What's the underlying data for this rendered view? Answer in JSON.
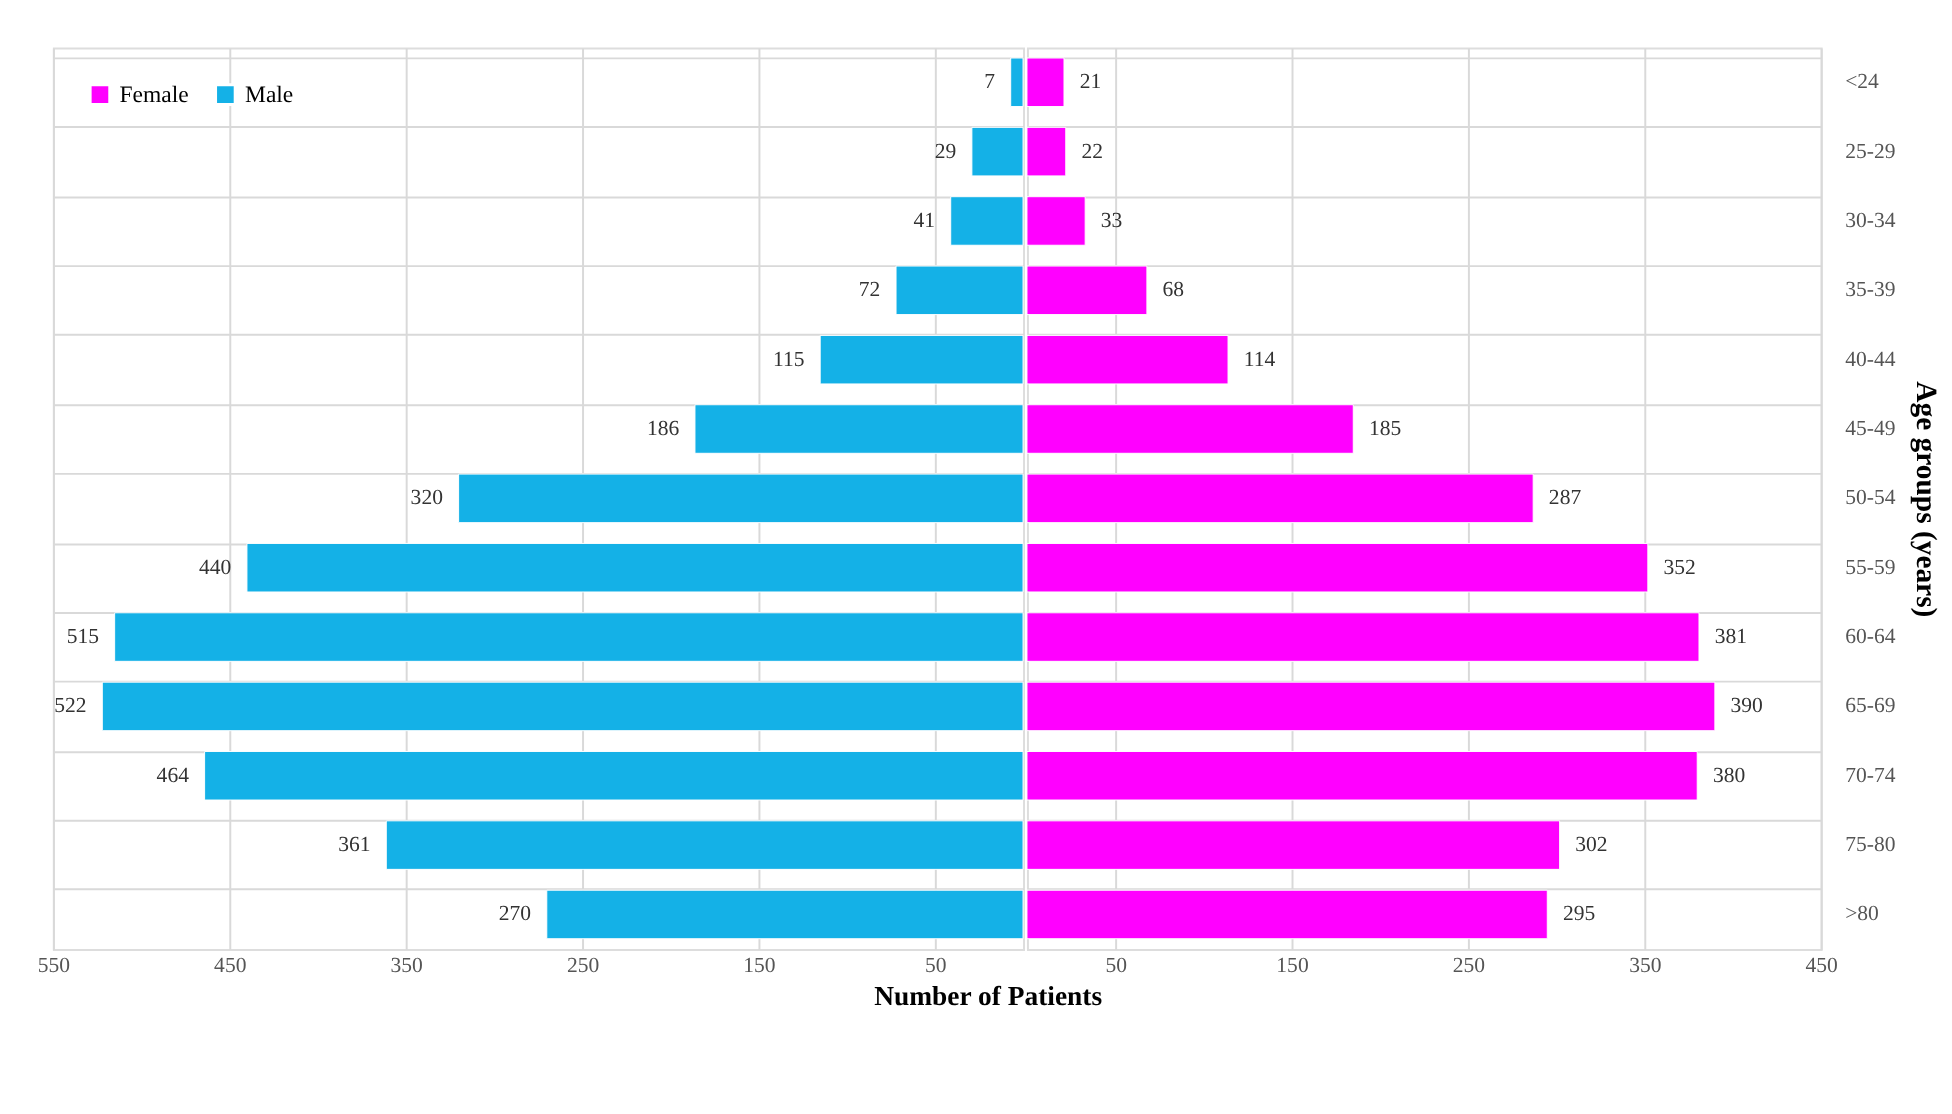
{
  "chart_data": [
    {
      "type": "bar",
      "orientation": "horizontal",
      "xlabel": "Number of Patients",
      "tick_labels": "x",
      "categories": [
        null,
        null,
        null,
        null,
        null,
        null,
        null,
        null,
        null,
        null,
        null,
        null,
        null
      ],
      "series": [
        {
          "name": "Male",
          "color": "#14b1e7",
          "values": [
            7,
            29,
            41,
            72,
            115,
            186,
            320,
            440,
            515,
            522,
            464,
            361,
            270
          ]
        }
      ],
      "xlim": [
        550,
        0
      ],
      "xticks": [
        550,
        450,
        350,
        250,
        150,
        50
      ],
      "data_labels": true,
      "grid": true,
      "legend": "top left"
    },
    {
      "type": "bar",
      "orientation": "horizontal",
      "ylabel": "Age groups (years)",
      "categories": [
        "<24",
        "25-29",
        "30-34",
        "35-39",
        "40-44",
        "45-49",
        "50-54",
        "55-59",
        "60-64",
        "65-69",
        "70-74",
        "75-80",
        ">80"
      ],
      "series": [
        {
          "name": "Female",
          "color": "#ff00ff",
          "values": [
            21,
            22,
            33,
            68,
            114,
            185,
            287,
            352,
            381,
            390,
            380,
            302,
            295
          ]
        }
      ],
      "xlim": [
        0,
        450
      ],
      "xticks": [
        50,
        150,
        250,
        350,
        450
      ],
      "data_labels": true,
      "grid": true
    }
  ]
}
